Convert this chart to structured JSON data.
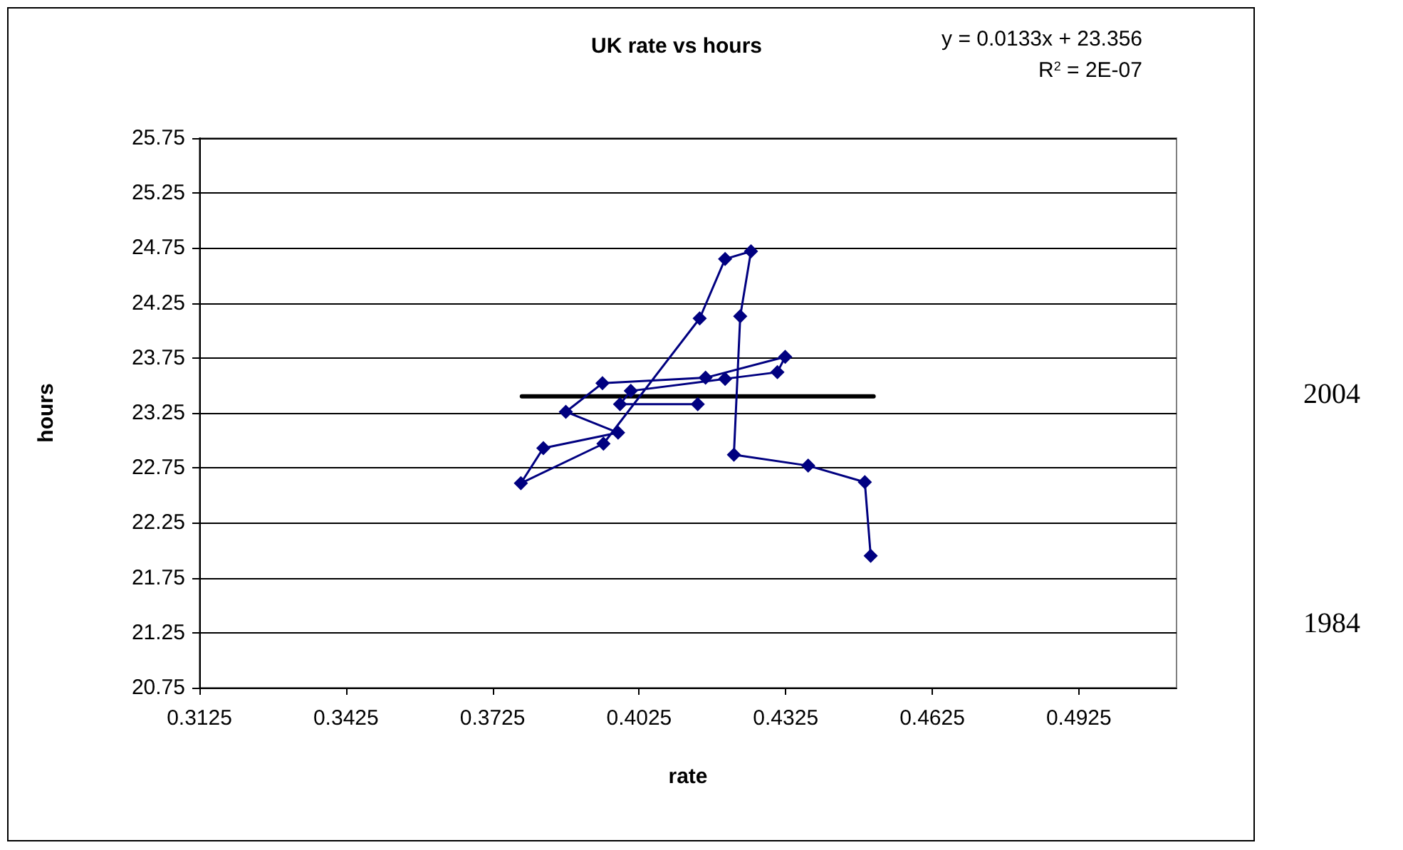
{
  "chart_data": {
    "type": "line",
    "title": "UK rate vs hours",
    "xlabel": "rate",
    "ylabel": "hours",
    "xlim": [
      0.3125,
      0.5125
    ],
    "xticks": [
      0.3125,
      0.3425,
      0.3725,
      0.4025,
      0.4325,
      0.4625,
      0.4925
    ],
    "ylim": [
      20.75,
      25.75
    ],
    "yticks": [
      20.75,
      21.25,
      21.75,
      22.25,
      22.75,
      23.25,
      23.75,
      24.25,
      24.75,
      25.25,
      25.75
    ],
    "grid": "y",
    "marker": "diamond",
    "line_style": "solid",
    "series": [
      {
        "color": "#000080",
        "x": [
          0.4499,
          0.4487,
          0.4371,
          0.4219,
          0.4232,
          0.4254,
          0.4201,
          0.4149,
          0.3952,
          0.3783,
          0.3829,
          0.3982,
          0.3875,
          0.395,
          0.4161,
          0.4324,
          0.4308,
          0.4201,
          0.4008,
          0.3986,
          0.4145
        ],
        "values": [
          21.95,
          22.62,
          22.77,
          22.87,
          24.13,
          24.72,
          24.65,
          24.11,
          22.97,
          22.61,
          22.93,
          23.07,
          23.26,
          23.52,
          23.57,
          23.76,
          23.62,
          23.56,
          23.45,
          23.33,
          23.33
        ]
      },
      {
        "color": "#000000",
        "marker": "none",
        "x": [
          0.3785,
          0.4505
        ],
        "values": [
          23.4,
          23.4
        ]
      }
    ],
    "annotations": [
      "y = 0.0133x + 23.356",
      "R$^{2}$ = 2E-07",
      "2004",
      "1984"
    ]
  }
}
